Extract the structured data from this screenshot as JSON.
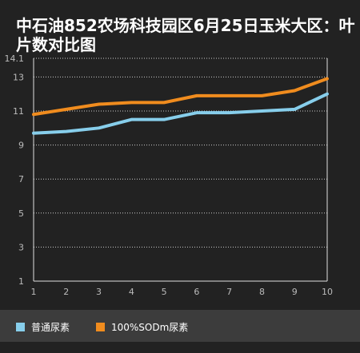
{
  "chart_data": {
    "type": "line",
    "title": "中石油852农场科技园区6月25日玉米大区：叶片数对比图",
    "xlabel": "",
    "ylabel": "",
    "x": [
      1,
      2,
      3,
      4,
      5,
      6,
      7,
      8,
      9,
      10
    ],
    "x_ticks": [
      "1",
      "2",
      "3",
      "4",
      "5",
      "6",
      "7",
      "8",
      "9",
      "10"
    ],
    "y_ticks": [
      "1",
      "3",
      "5",
      "7",
      "9",
      "11",
      "13",
      "14.1"
    ],
    "y_tick_values": [
      1,
      3,
      5,
      7,
      9,
      11,
      13,
      14.1
    ],
    "ylim": [
      1,
      14.1
    ],
    "xlim": [
      1,
      10
    ],
    "grid": true,
    "legend_position": "bottom",
    "series": [
      {
        "name": "普通尿素",
        "color": "#87ceeb",
        "values": [
          9.7,
          9.8,
          10.0,
          10.5,
          10.5,
          10.9,
          10.9,
          11.0,
          11.1,
          12.0
        ]
      },
      {
        "name": "100%SODm尿素",
        "color": "#f08c1e",
        "values": [
          10.8,
          11.1,
          11.4,
          11.5,
          11.5,
          11.9,
          11.9,
          11.9,
          12.2,
          12.9
        ]
      }
    ]
  },
  "colors": {
    "background": "#222222",
    "grid": "#cccccc",
    "legend_bg": "#3c3c3c",
    "text": "#ffffff",
    "tick": "#bbbbbb"
  }
}
